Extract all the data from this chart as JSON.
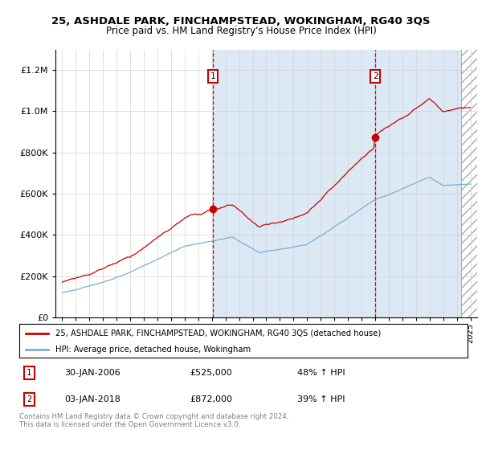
{
  "title": "25, ASHDALE PARK, FINCHAMPSTEAD, WOKINGHAM, RG40 3QS",
  "subtitle": "Price paid vs. HM Land Registry's House Price Index (HPI)",
  "legend_line1": "25, ASHDALE PARK, FINCHAMPSTEAD, WOKINGHAM, RG40 3QS (detached house)",
  "legend_line2": "HPI: Average price, detached house, Wokingham",
  "footnote": "Contains HM Land Registry data © Crown copyright and database right 2024.\nThis data is licensed under the Open Government Licence v3.0.",
  "annotation1_date": "30-JAN-2006",
  "annotation1_price": "£525,000",
  "annotation1_pct": "48% ↑ HPI",
  "annotation2_date": "03-JAN-2018",
  "annotation2_price": "£872,000",
  "annotation2_pct": "39% ↑ HPI",
  "sale1_x": 2006.08,
  "sale1_y": 525000,
  "sale2_x": 2018.01,
  "sale2_y": 872000,
  "red_color": "#cc0000",
  "blue_color": "#7aadd4",
  "background_color_left": "#ffffff",
  "background_color_right": "#dce9f5",
  "ylim": [
    0,
    1300000
  ],
  "xlim_start": 1994.5,
  "xlim_end": 2025.5,
  "hatch_start": 2024.33
}
